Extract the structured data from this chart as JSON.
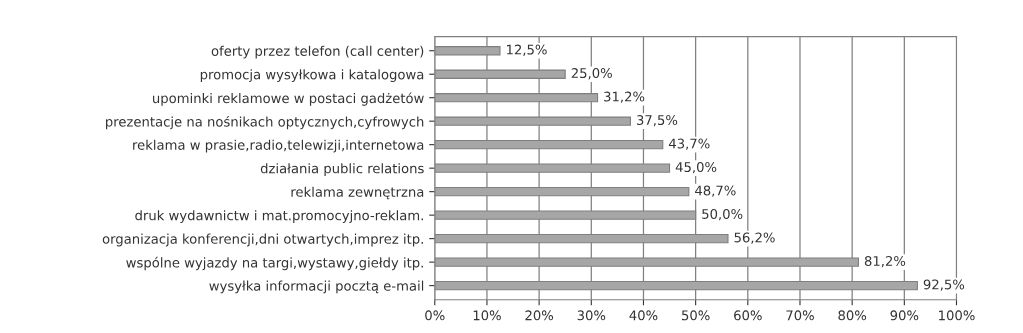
{
  "chart_data": {
    "type": "bar",
    "orientation": "horizontal",
    "categories": [
      "oferty przez telefon (call center)",
      "promocja wysyłkowa i katalogowa",
      "upominki reklamowe w postaci gadżetów",
      "prezentacje na nośnikach optycznych,cyfrowych",
      "reklama w prasie,radio,telewizji,internetowa",
      "działania public relations",
      "reklama zewnętrzna",
      "druk wydawnictw i mat.promocyjno-reklam.",
      "organizacja konferencji,dni otwartych,imprez itp.",
      "wspólne wyjazdy na targi,wystawy,giełdy itp.",
      "wysyłka informacji pocztą e-mail"
    ],
    "values": [
      12.5,
      25.0,
      31.2,
      37.5,
      43.7,
      45.0,
      48.7,
      50.0,
      56.2,
      81.2,
      92.5
    ],
    "value_labels": [
      "12,5%",
      "25,0%",
      "31,2%",
      "37,5%",
      "43,7%",
      "45,0%",
      "48,7%",
      "50,0%",
      "56,2%",
      "81,2%",
      "92,5%"
    ],
    "color": "#a6a6a6",
    "xlim": [
      0,
      100
    ],
    "xticks": [
      {
        "value": 0,
        "label": "0%"
      },
      {
        "value": 10,
        "label": "10%"
      },
      {
        "value": 20,
        "label": "20%"
      },
      {
        "value": 30,
        "label": "30%"
      },
      {
        "value": 40,
        "label": "40%"
      },
      {
        "value": 50,
        "label": "50%"
      },
      {
        "value": 60,
        "label": "60%"
      },
      {
        "value": 70,
        "label": "70%"
      },
      {
        "value": 80,
        "label": "80%"
      },
      {
        "value": 90,
        "label": "90%"
      },
      {
        "value": 100,
        "label": "100%"
      }
    ],
    "grid": "x"
  }
}
